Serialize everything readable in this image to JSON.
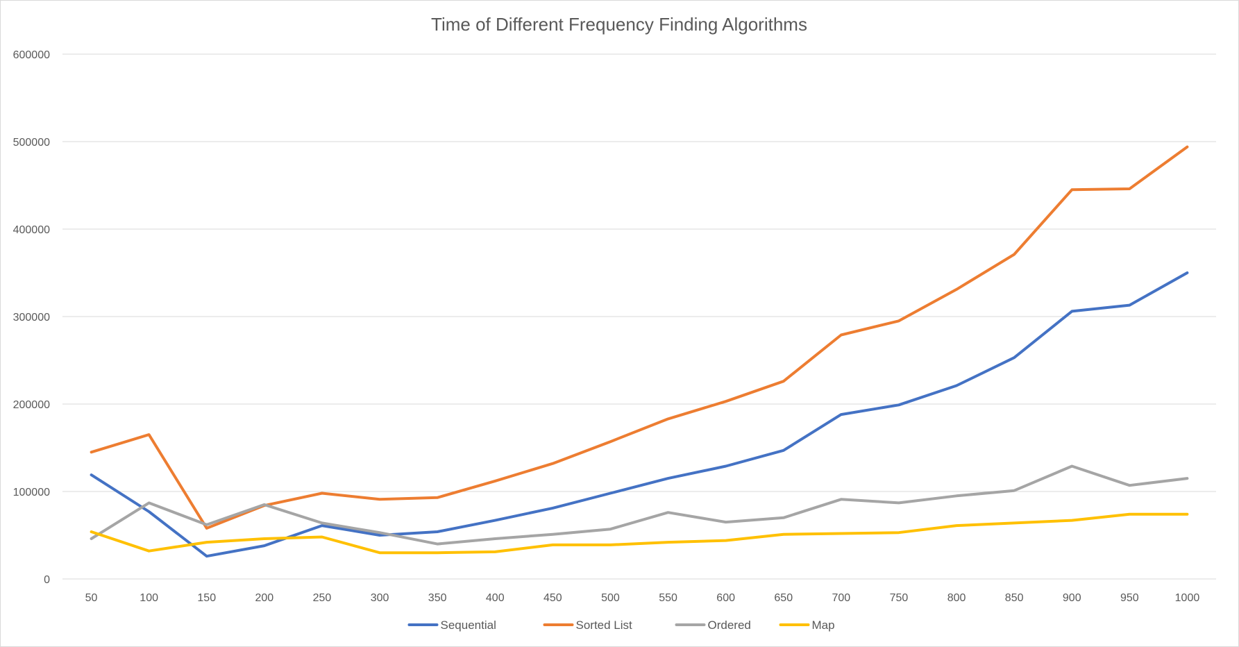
{
  "chart_data": {
    "type": "line",
    "title": "Time of Different Frequency Finding Algorithms",
    "xlabel": "",
    "ylabel": "",
    "categories": [
      "50",
      "100",
      "150",
      "200",
      "250",
      "300",
      "350",
      "400",
      "450",
      "500",
      "550",
      "600",
      "650",
      "700",
      "750",
      "800",
      "850",
      "900",
      "950",
      "1000"
    ],
    "ylim": [
      0,
      600000
    ],
    "yticks": [
      "0",
      "100000",
      "200000",
      "300000",
      "400000",
      "500000",
      "600000"
    ],
    "grid": true,
    "legend_position": "bottom",
    "series": [
      {
        "name": "Sequential",
        "color": "#4472c4",
        "values": [
          119000,
          77000,
          26000,
          38000,
          61000,
          50000,
          54000,
          67000,
          81000,
          98000,
          115000,
          129000,
          147000,
          188000,
          199000,
          221000,
          253000,
          306000,
          313000,
          350000
        ]
      },
      {
        "name": "Sorted List",
        "color": "#ed7d31",
        "values": [
          145000,
          165000,
          58000,
          84000,
          98000,
          91000,
          93000,
          112000,
          132000,
          157000,
          183000,
          203000,
          226000,
          279000,
          295000,
          331000,
          371000,
          445000,
          446000,
          494000
        ]
      },
      {
        "name": "Ordered",
        "color": "#a5a5a5",
        "values": [
          46000,
          87000,
          62000,
          85000,
          64000,
          53000,
          40000,
          46000,
          51000,
          57000,
          76000,
          65000,
          70000,
          91000,
          87000,
          95000,
          101000,
          129000,
          107000,
          115000
        ]
      },
      {
        "name": "Map",
        "color": "#ffc000",
        "values": [
          54000,
          32000,
          42000,
          46000,
          48000,
          30000,
          30000,
          31000,
          39000,
          39000,
          42000,
          44000,
          51000,
          52000,
          53000,
          61000,
          64000,
          67000,
          74000,
          74000
        ]
      }
    ]
  }
}
